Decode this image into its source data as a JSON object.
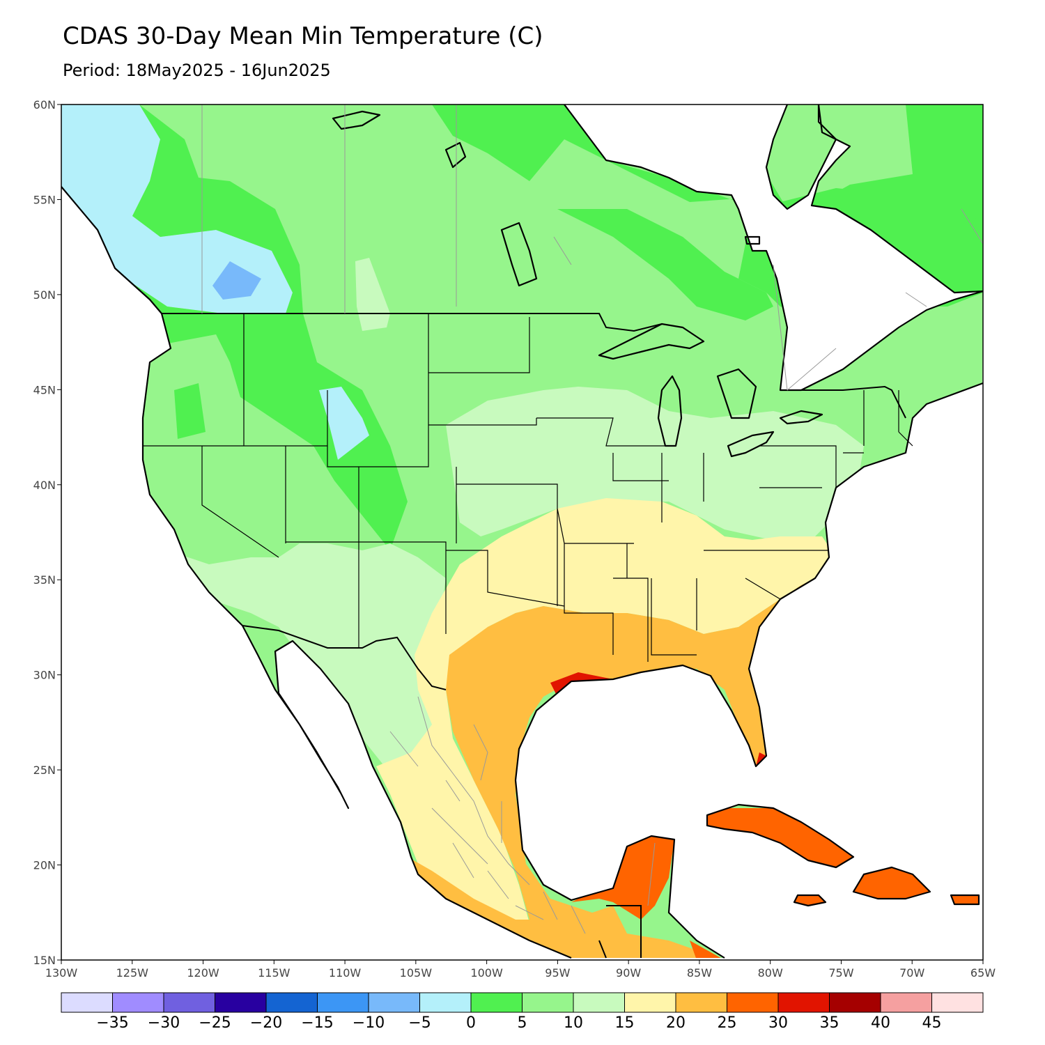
{
  "title": "CDAS 30-Day Mean Min Temperature (C)",
  "subtitle": "Period: 18May2025 - 16Jun2025",
  "colors": {
    "ocean": "#ffffff",
    "band_m5_0": "#b4f0fa",
    "band_m10_m5": "#78b9fa",
    "band_0_5": "#50f050",
    "band_5_10": "#96f58c",
    "band_10_15": "#c8fabe",
    "band_15_20": "#fff5aa",
    "band_20_25": "#ffbe41",
    "band_25_30": "#ff6400",
    "band_30_35": "#e11400"
  },
  "map_data": {
    "projection": "cylindrical-equidistant",
    "lon_range": [
      -130,
      -65
    ],
    "lat_range": [
      15,
      60
    ],
    "lon_ticks": [
      "130W",
      "125W",
      "120W",
      "115W",
      "110W",
      "105W",
      "100W",
      "95W",
      "90W",
      "85W",
      "80W",
      "75W",
      "70W",
      "65W"
    ],
    "lat_ticks": [
      "15N",
      "20N",
      "25N",
      "30N",
      "35N",
      "40N",
      "45N",
      "50N",
      "55N",
      "60N"
    ],
    "colorbar": {
      "levels": [
        "-35",
        "-30",
        "-25",
        "-20",
        "-15",
        "-10",
        "-5",
        "0",
        "5",
        "10",
        "15",
        "20",
        "25",
        "30",
        "35",
        "40",
        "45"
      ],
      "colors": [
        "#dcdcff",
        "#a08cff",
        "#7060e0",
        "#2800a0",
        "#1464d2",
        "#3c96f5",
        "#78b9fa",
        "#b4f0fa",
        "#50f050",
        "#96f58c",
        "#c8fabe",
        "#fff5aa",
        "#ffbe41",
        "#ff6400",
        "#e11400",
        "#a50000",
        "#f5a0a0",
        "#ffe1e1"
      ]
    }
  }
}
